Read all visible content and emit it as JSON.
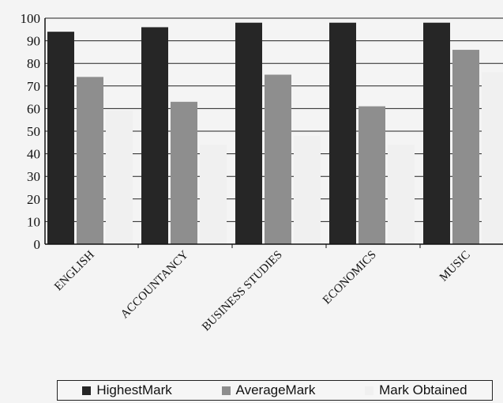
{
  "chart_data": {
    "type": "bar",
    "title": "",
    "xlabel": "",
    "ylabel": "",
    "ylim": [
      0,
      100
    ],
    "yticks": [
      0,
      10,
      20,
      30,
      40,
      50,
      60,
      70,
      80,
      90,
      100
    ],
    "grid": "horizontal",
    "legend_position": "bottom",
    "categories": [
      "ENGLISH",
      "ACCOUNTANCY",
      "BUSINESS STUDIES",
      "ECONOMICS",
      "MUSIC"
    ],
    "series": [
      {
        "name": "HighestMark",
        "color": "#262626",
        "values": [
          94,
          96,
          98,
          98,
          98
        ]
      },
      {
        "name": "AverageMark",
        "color": "#8e8e8e",
        "values": [
          74,
          63,
          75,
          61,
          86
        ]
      },
      {
        "name": "Mark Obtained",
        "color": "#f0f0f0",
        "values": [
          59,
          44,
          48,
          44,
          76
        ]
      }
    ]
  }
}
